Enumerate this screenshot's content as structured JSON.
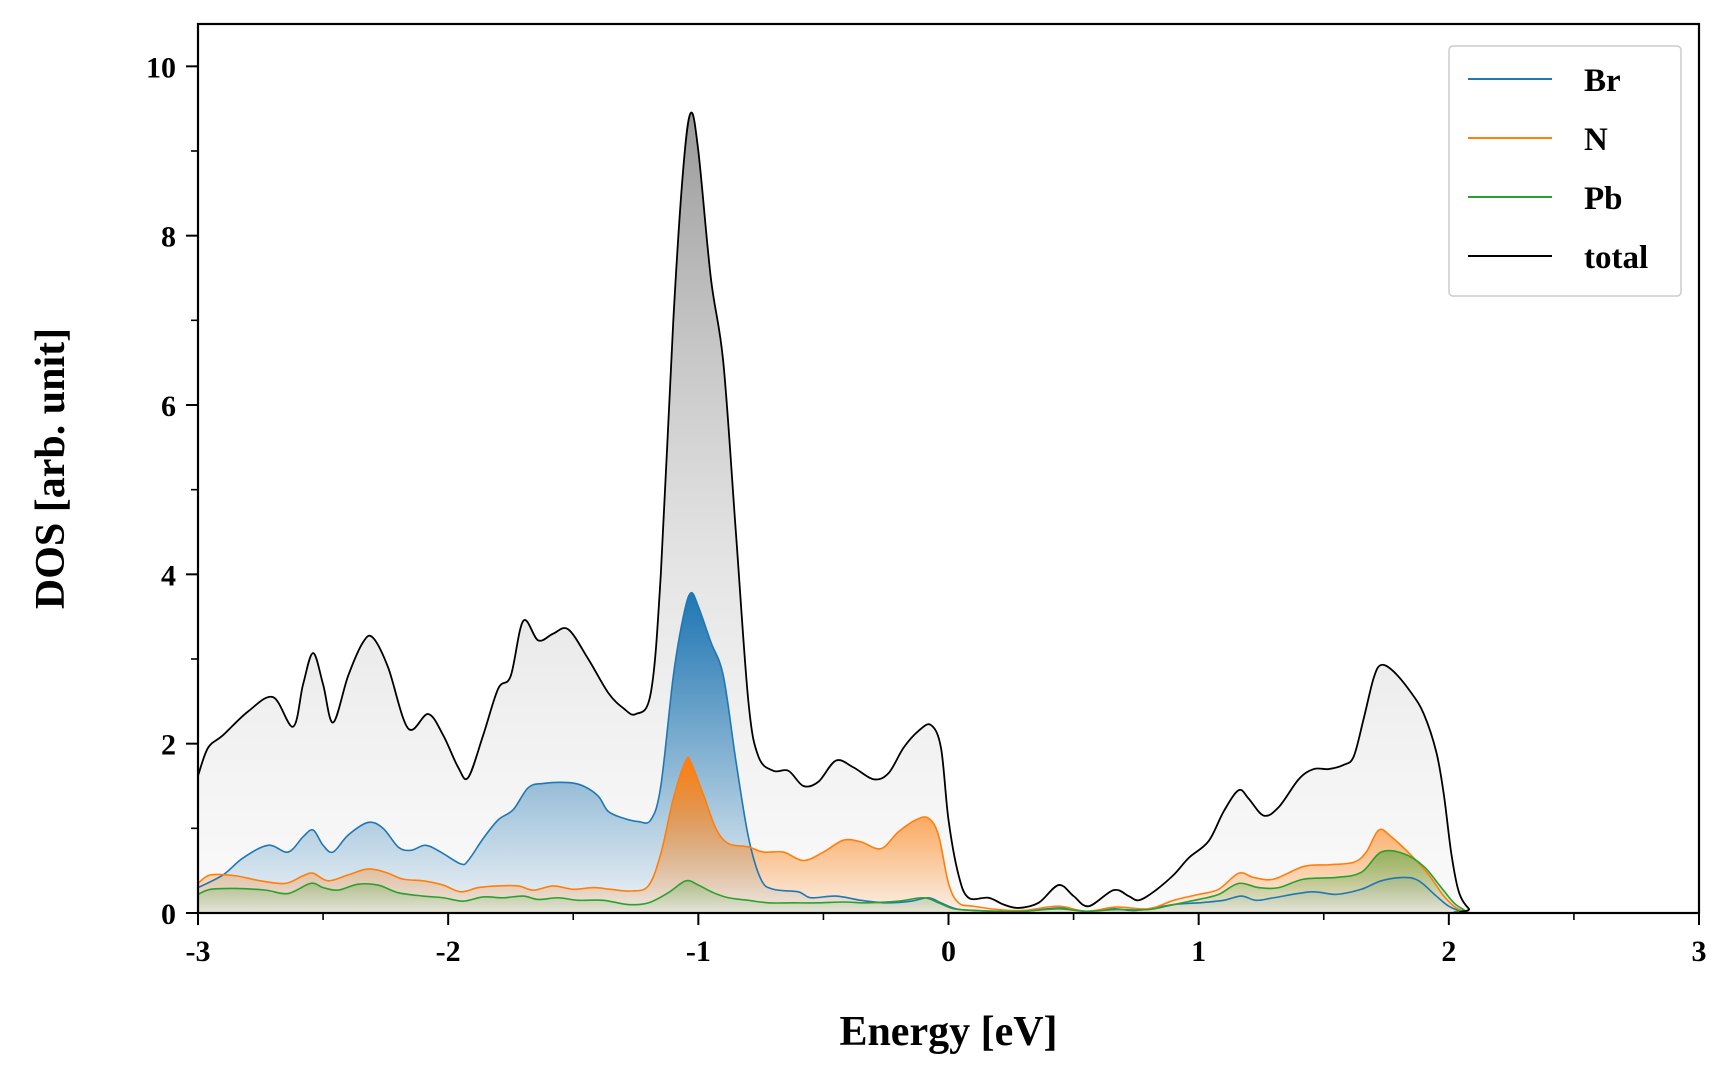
{
  "chart_data": {
    "type": "area",
    "title": "",
    "xlabel": "Energy [eV]",
    "ylabel": "DOS [arb. unit]",
    "xlim": [
      -3,
      3
    ],
    "ylim": [
      0,
      10.5
    ],
    "xticks": [
      -3,
      -2,
      -1,
      0,
      1,
      2,
      3
    ],
    "xtick_labels": [
      "-3",
      "-2",
      "-1",
      "0",
      "1",
      "2",
      "3"
    ],
    "yticks": [
      0,
      2,
      4,
      6,
      8,
      10
    ],
    "ytick_labels": [
      "0",
      "2",
      "4",
      "6",
      "8",
      "10"
    ],
    "x_minor_step": 0.5,
    "y_minor_step": 1,
    "grid": false,
    "legend_position": "top-right",
    "series": [
      {
        "name": "Br",
        "color": "#1f77b4",
        "points": [
          [
            -3.0,
            0.3
          ],
          [
            -2.9,
            0.45
          ],
          [
            -2.82,
            0.65
          ],
          [
            -2.72,
            0.8
          ],
          [
            -2.64,
            0.72
          ],
          [
            -2.58,
            0.9
          ],
          [
            -2.54,
            0.98
          ],
          [
            -2.5,
            0.8
          ],
          [
            -2.46,
            0.72
          ],
          [
            -2.4,
            0.92
          ],
          [
            -2.32,
            1.07
          ],
          [
            -2.26,
            1.0
          ],
          [
            -2.2,
            0.78
          ],
          [
            -2.15,
            0.74
          ],
          [
            -2.09,
            0.8
          ],
          [
            -2.03,
            0.72
          ],
          [
            -1.95,
            0.58
          ],
          [
            -1.92,
            0.62
          ],
          [
            -1.86,
            0.88
          ],
          [
            -1.8,
            1.1
          ],
          [
            -1.74,
            1.22
          ],
          [
            -1.68,
            1.48
          ],
          [
            -1.62,
            1.53
          ],
          [
            -1.52,
            1.54
          ],
          [
            -1.46,
            1.5
          ],
          [
            -1.4,
            1.38
          ],
          [
            -1.36,
            1.2
          ],
          [
            -1.3,
            1.12
          ],
          [
            -1.24,
            1.08
          ],
          [
            -1.19,
            1.1
          ],
          [
            -1.15,
            1.5
          ],
          [
            -1.1,
            2.8
          ],
          [
            -1.06,
            3.5
          ],
          [
            -1.03,
            3.78
          ],
          [
            -1.0,
            3.62
          ],
          [
            -0.95,
            3.2
          ],
          [
            -0.9,
            2.8
          ],
          [
            -0.85,
            1.8
          ],
          [
            -0.8,
            0.9
          ],
          [
            -0.75,
            0.4
          ],
          [
            -0.7,
            0.28
          ],
          [
            -0.6,
            0.25
          ],
          [
            -0.55,
            0.18
          ],
          [
            -0.45,
            0.2
          ],
          [
            -0.35,
            0.15
          ],
          [
            -0.25,
            0.12
          ],
          [
            -0.15,
            0.14
          ],
          [
            -0.08,
            0.18
          ],
          [
            -0.03,
            0.12
          ],
          [
            0.03,
            0.05
          ],
          [
            0.1,
            0.03
          ],
          [
            0.2,
            0.02
          ],
          [
            0.3,
            0.02
          ],
          [
            0.45,
            0.06
          ],
          [
            0.55,
            0.02
          ],
          [
            0.66,
            0.05
          ],
          [
            0.75,
            0.03
          ],
          [
            0.9,
            0.1
          ],
          [
            1.0,
            0.12
          ],
          [
            1.1,
            0.15
          ],
          [
            1.17,
            0.2
          ],
          [
            1.23,
            0.15
          ],
          [
            1.3,
            0.18
          ],
          [
            1.45,
            0.25
          ],
          [
            1.55,
            0.22
          ],
          [
            1.65,
            0.28
          ],
          [
            1.73,
            0.38
          ],
          [
            1.82,
            0.42
          ],
          [
            1.88,
            0.38
          ],
          [
            1.95,
            0.2
          ],
          [
            2.0,
            0.08
          ],
          [
            2.05,
            0.02
          ],
          [
            2.1,
            0.0
          ],
          [
            3.0,
            0.0
          ]
        ]
      },
      {
        "name": "N",
        "color": "#ff7f0e",
        "points": [
          [
            -3.0,
            0.35
          ],
          [
            -2.95,
            0.45
          ],
          [
            -2.85,
            0.44
          ],
          [
            -2.75,
            0.38
          ],
          [
            -2.65,
            0.35
          ],
          [
            -2.58,
            0.44
          ],
          [
            -2.54,
            0.47
          ],
          [
            -2.48,
            0.38
          ],
          [
            -2.4,
            0.45
          ],
          [
            -2.32,
            0.52
          ],
          [
            -2.25,
            0.48
          ],
          [
            -2.18,
            0.4
          ],
          [
            -2.1,
            0.38
          ],
          [
            -2.02,
            0.33
          ],
          [
            -1.95,
            0.25
          ],
          [
            -1.88,
            0.3
          ],
          [
            -1.8,
            0.32
          ],
          [
            -1.72,
            0.32
          ],
          [
            -1.66,
            0.27
          ],
          [
            -1.58,
            0.32
          ],
          [
            -1.5,
            0.28
          ],
          [
            -1.42,
            0.3
          ],
          [
            -1.35,
            0.28
          ],
          [
            -1.27,
            0.26
          ],
          [
            -1.2,
            0.32
          ],
          [
            -1.15,
            0.7
          ],
          [
            -1.1,
            1.35
          ],
          [
            -1.05,
            1.8
          ],
          [
            -1.03,
            1.78
          ],
          [
            -0.98,
            1.4
          ],
          [
            -0.93,
            1.0
          ],
          [
            -0.88,
            0.82
          ],
          [
            -0.8,
            0.78
          ],
          [
            -0.74,
            0.72
          ],
          [
            -0.66,
            0.72
          ],
          [
            -0.58,
            0.62
          ],
          [
            -0.5,
            0.72
          ],
          [
            -0.42,
            0.86
          ],
          [
            -0.35,
            0.84
          ],
          [
            -0.27,
            0.76
          ],
          [
            -0.2,
            0.96
          ],
          [
            -0.13,
            1.1
          ],
          [
            -0.08,
            1.12
          ],
          [
            -0.04,
            0.92
          ],
          [
            0.0,
            0.35
          ],
          [
            0.04,
            0.12
          ],
          [
            0.1,
            0.08
          ],
          [
            0.2,
            0.04
          ],
          [
            0.3,
            0.03
          ],
          [
            0.44,
            0.08
          ],
          [
            0.55,
            0.02
          ],
          [
            0.67,
            0.07
          ],
          [
            0.8,
            0.05
          ],
          [
            0.9,
            0.15
          ],
          [
            1.0,
            0.22
          ],
          [
            1.08,
            0.28
          ],
          [
            1.16,
            0.47
          ],
          [
            1.22,
            0.42
          ],
          [
            1.3,
            0.4
          ],
          [
            1.42,
            0.55
          ],
          [
            1.52,
            0.57
          ],
          [
            1.62,
            0.6
          ],
          [
            1.67,
            0.72
          ],
          [
            1.72,
            0.98
          ],
          [
            1.77,
            0.9
          ],
          [
            1.85,
            0.68
          ],
          [
            1.92,
            0.45
          ],
          [
            1.98,
            0.2
          ],
          [
            2.03,
            0.06
          ],
          [
            2.08,
            0.01
          ],
          [
            2.12,
            0.0
          ],
          [
            3.0,
            0.0
          ]
        ]
      },
      {
        "name": "Pb",
        "color": "#2ca02c",
        "points": [
          [
            -3.0,
            0.22
          ],
          [
            -2.95,
            0.28
          ],
          [
            -2.85,
            0.29
          ],
          [
            -2.73,
            0.27
          ],
          [
            -2.64,
            0.23
          ],
          [
            -2.55,
            0.35
          ],
          [
            -2.5,
            0.3
          ],
          [
            -2.44,
            0.27
          ],
          [
            -2.36,
            0.34
          ],
          [
            -2.28,
            0.33
          ],
          [
            -2.2,
            0.24
          ],
          [
            -2.1,
            0.2
          ],
          [
            -2.02,
            0.18
          ],
          [
            -1.94,
            0.14
          ],
          [
            -1.86,
            0.19
          ],
          [
            -1.78,
            0.18
          ],
          [
            -1.7,
            0.2
          ],
          [
            -1.64,
            0.16
          ],
          [
            -1.56,
            0.18
          ],
          [
            -1.48,
            0.15
          ],
          [
            -1.38,
            0.15
          ],
          [
            -1.28,
            0.1
          ],
          [
            -1.2,
            0.12
          ],
          [
            -1.12,
            0.24
          ],
          [
            -1.05,
            0.38
          ],
          [
            -1.0,
            0.33
          ],
          [
            -0.94,
            0.24
          ],
          [
            -0.88,
            0.18
          ],
          [
            -0.8,
            0.15
          ],
          [
            -0.72,
            0.12
          ],
          [
            -0.62,
            0.12
          ],
          [
            -0.52,
            0.12
          ],
          [
            -0.42,
            0.13
          ],
          [
            -0.32,
            0.12
          ],
          [
            -0.2,
            0.14
          ],
          [
            -0.1,
            0.18
          ],
          [
            -0.04,
            0.12
          ],
          [
            0.02,
            0.05
          ],
          [
            0.1,
            0.03
          ],
          [
            0.2,
            0.02
          ],
          [
            0.3,
            0.02
          ],
          [
            0.44,
            0.05
          ],
          [
            0.55,
            0.02
          ],
          [
            0.67,
            0.04
          ],
          [
            0.8,
            0.04
          ],
          [
            0.9,
            0.1
          ],
          [
            1.0,
            0.16
          ],
          [
            1.08,
            0.22
          ],
          [
            1.16,
            0.35
          ],
          [
            1.24,
            0.3
          ],
          [
            1.32,
            0.3
          ],
          [
            1.42,
            0.4
          ],
          [
            1.55,
            0.42
          ],
          [
            1.65,
            0.48
          ],
          [
            1.73,
            0.72
          ],
          [
            1.82,
            0.7
          ],
          [
            1.9,
            0.55
          ],
          [
            1.97,
            0.3
          ],
          [
            2.02,
            0.12
          ],
          [
            2.06,
            0.04
          ],
          [
            2.1,
            0.0
          ],
          [
            3.0,
            0.0
          ]
        ]
      },
      {
        "name": "total",
        "color": "#000000",
        "points": [
          [
            -3.0,
            1.62
          ],
          [
            -2.96,
            1.95
          ],
          [
            -2.9,
            2.1
          ],
          [
            -2.8,
            2.38
          ],
          [
            -2.7,
            2.55
          ],
          [
            -2.62,
            2.2
          ],
          [
            -2.58,
            2.7
          ],
          [
            -2.54,
            3.07
          ],
          [
            -2.5,
            2.7
          ],
          [
            -2.46,
            2.25
          ],
          [
            -2.4,
            2.8
          ],
          [
            -2.34,
            3.2
          ],
          [
            -2.3,
            3.25
          ],
          [
            -2.24,
            2.9
          ],
          [
            -2.16,
            2.18
          ],
          [
            -2.08,
            2.35
          ],
          [
            -2.02,
            2.1
          ],
          [
            -1.96,
            1.72
          ],
          [
            -1.92,
            1.6
          ],
          [
            -1.86,
            2.1
          ],
          [
            -1.8,
            2.65
          ],
          [
            -1.75,
            2.8
          ],
          [
            -1.7,
            3.45
          ],
          [
            -1.64,
            3.22
          ],
          [
            -1.58,
            3.3
          ],
          [
            -1.52,
            3.35
          ],
          [
            -1.44,
            3.0
          ],
          [
            -1.36,
            2.6
          ],
          [
            -1.3,
            2.42
          ],
          [
            -1.25,
            2.35
          ],
          [
            -1.19,
            2.6
          ],
          [
            -1.15,
            4.0
          ],
          [
            -1.1,
            7.0
          ],
          [
            -1.06,
            8.8
          ],
          [
            -1.03,
            9.45
          ],
          [
            -1.0,
            9.0
          ],
          [
            -0.95,
            7.5
          ],
          [
            -0.9,
            6.5
          ],
          [
            -0.85,
            4.5
          ],
          [
            -0.8,
            2.5
          ],
          [
            -0.76,
            1.85
          ],
          [
            -0.7,
            1.68
          ],
          [
            -0.64,
            1.68
          ],
          [
            -0.58,
            1.5
          ],
          [
            -0.52,
            1.55
          ],
          [
            -0.45,
            1.8
          ],
          [
            -0.38,
            1.72
          ],
          [
            -0.3,
            1.58
          ],
          [
            -0.24,
            1.65
          ],
          [
            -0.18,
            1.95
          ],
          [
            -0.12,
            2.15
          ],
          [
            -0.07,
            2.22
          ],
          [
            -0.03,
            1.95
          ],
          [
            0.0,
            1.1
          ],
          [
            0.04,
            0.45
          ],
          [
            0.08,
            0.18
          ],
          [
            0.16,
            0.18
          ],
          [
            0.22,
            0.1
          ],
          [
            0.28,
            0.06
          ],
          [
            0.36,
            0.12
          ],
          [
            0.44,
            0.33
          ],
          [
            0.5,
            0.2
          ],
          [
            0.56,
            0.08
          ],
          [
            0.66,
            0.27
          ],
          [
            0.72,
            0.2
          ],
          [
            0.76,
            0.15
          ],
          [
            0.82,
            0.25
          ],
          [
            0.9,
            0.45
          ],
          [
            0.96,
            0.65
          ],
          [
            1.04,
            0.85
          ],
          [
            1.1,
            1.2
          ],
          [
            1.16,
            1.45
          ],
          [
            1.2,
            1.35
          ],
          [
            1.26,
            1.15
          ],
          [
            1.32,
            1.25
          ],
          [
            1.4,
            1.58
          ],
          [
            1.46,
            1.7
          ],
          [
            1.52,
            1.7
          ],
          [
            1.58,
            1.75
          ],
          [
            1.62,
            1.85
          ],
          [
            1.66,
            2.3
          ],
          [
            1.7,
            2.78
          ],
          [
            1.73,
            2.93
          ],
          [
            1.78,
            2.85
          ],
          [
            1.85,
            2.6
          ],
          [
            1.9,
            2.35
          ],
          [
            1.95,
            1.9
          ],
          [
            1.98,
            1.4
          ],
          [
            2.01,
            0.7
          ],
          [
            2.04,
            0.25
          ],
          [
            2.08,
            0.05
          ],
          [
            2.12,
            0.0
          ],
          [
            3.0,
            0.0
          ]
        ]
      }
    ]
  }
}
